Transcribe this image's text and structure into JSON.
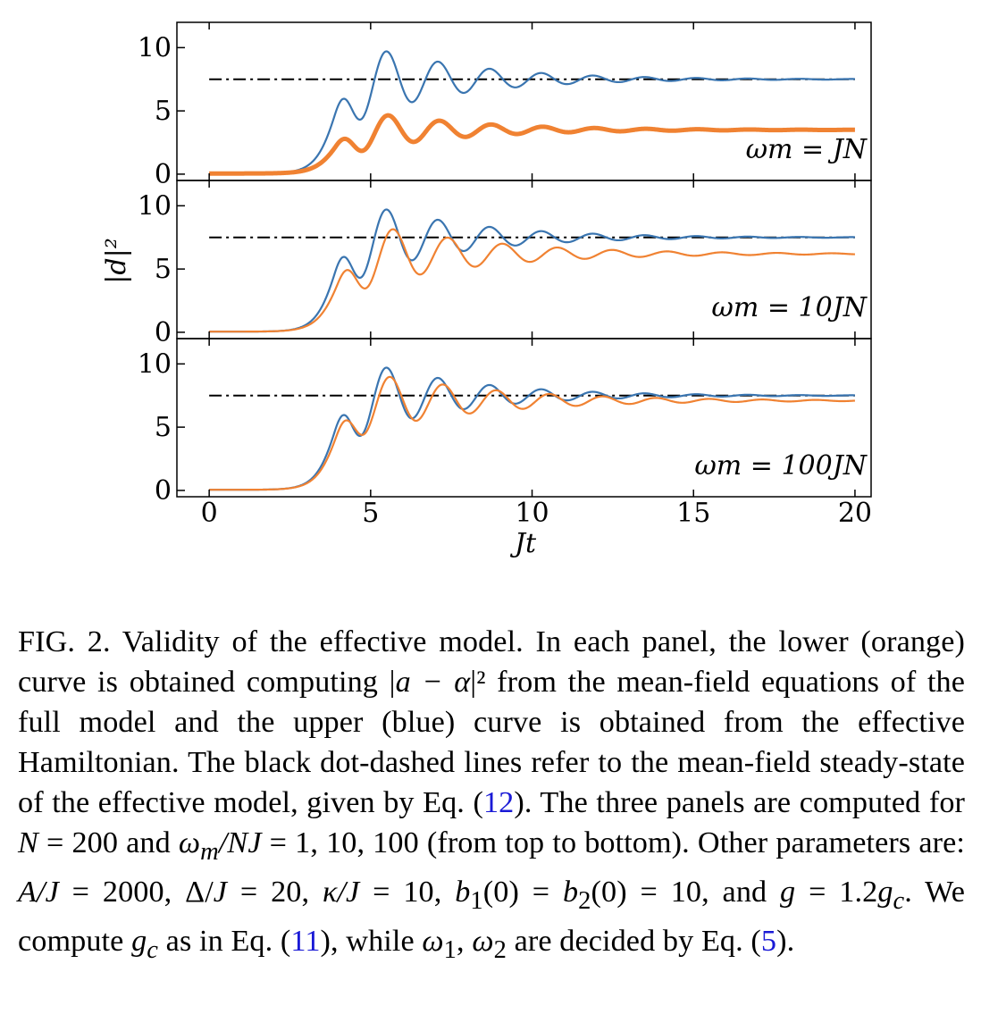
{
  "chart_data": {
    "type": "line",
    "shared_ylabel": "|d|²",
    "xlabel": "Jt",
    "xlim": [
      -1,
      20.5
    ],
    "xticks": [
      "0",
      "5",
      "10",
      "15",
      "20"
    ],
    "panels": [
      {
        "label": "ω_m = JN",
        "ylim": [
          -0.5,
          12
        ],
        "yticks": [
          "0",
          "5",
          "10"
        ],
        "series": [
          {
            "name": "effective Hamiltonian (upper, blue)",
            "color": "#3a75b0",
            "baseline": 0.05,
            "onset": 3.9,
            "rise_width": 0.35,
            "steady": 7.5,
            "amplitude": 3.9,
            "period": 1.6,
            "decay": 3.1
          },
          {
            "name": "full mean-field model (lower, orange)",
            "color": "#f08232",
            "baseline": 0.05,
            "onset": 3.95,
            "rise_width": 0.38,
            "steady": 3.5,
            "amplitude": 2.1,
            "period": 1.6,
            "decay": 3.0
          }
        ],
        "steady_state_line": 7.5
      },
      {
        "label": "ω_m = 10JN",
        "ylim": [
          -0.5,
          12
        ],
        "yticks": [
          "0",
          "5",
          "10"
        ],
        "series": [
          {
            "name": "effective Hamiltonian (upper, blue)",
            "color": "#3a75b0",
            "baseline": 0.05,
            "onset": 3.9,
            "rise_width": 0.35,
            "steady": 7.5,
            "amplitude": 3.9,
            "period": 1.6,
            "decay": 3.1
          },
          {
            "name": "full mean-field model (lower, orange)",
            "color": "#f08232",
            "baseline": 0.05,
            "onset": 4.0,
            "rise_width": 0.38,
            "steady": 6.2,
            "amplitude": 3.3,
            "period": 1.7,
            "decay": 3.6
          }
        ],
        "steady_state_line": 7.5
      },
      {
        "label": "ω_m = 100JN",
        "ylim": [
          -0.5,
          12
        ],
        "yticks": [
          "0",
          "5",
          "10"
        ],
        "series": [
          {
            "name": "effective Hamiltonian (upper, blue)",
            "color": "#3a75b0",
            "baseline": 0.05,
            "onset": 3.9,
            "rise_width": 0.35,
            "steady": 7.5,
            "amplitude": 3.9,
            "period": 1.6,
            "decay": 3.1
          },
          {
            "name": "full mean-field model (lower, orange)",
            "color": "#f08232",
            "baseline": 0.05,
            "onset": 3.95,
            "rise_width": 0.36,
            "steady": 7.1,
            "amplitude": 3.1,
            "period": 1.65,
            "decay": 3.7
          }
        ],
        "steady_state_line": 7.5
      }
    ]
  },
  "caption_parts": {
    "p01": "FIG. 2.  Validity of the effective model.  In each panel, the lower (orange) curve is obtained computing |",
    "p02": "a − α",
    "p03": "|² from the mean-field equations of the full model and the upper (blue) curve is obtained from the effective Hamiltonian.  The black dot-dashed lines refer to the mean-field steady-state of the effective model, given by Eq. (",
    "p04": "12",
    "p05": "). The three panels are computed for ",
    "p06": "N",
    "p07": " = 200 and ",
    "p08": "ω",
    "p09": "m",
    "p10": "/NJ",
    "p11": " = 1, 10, 100 (from top to bottom).  Other parameters are:  ",
    "p12": "A/J",
    "p13": " = 2000, Δ/",
    "p14": "J",
    "p15": " = 20, ",
    "p16": "κ/J",
    "p17": " = 10, ",
    "p18": "b",
    "p19": "1",
    "p20": "(0) = ",
    "p21": "b",
    "p22": "2",
    "p23": "(0) = 10, and ",
    "p24": "g",
    "p25": " = 1.2",
    "p26": "g",
    "p27": "c",
    "p28": ". We compute ",
    "p29": "g",
    "p30": "c",
    "p31": " as in Eq. (",
    "p32": "11",
    "p33": "), while ",
    "p34": "ω",
    "p35": "1",
    "p36": ", ",
    "p37": "ω",
    "p38": "2",
    "p39": " are decided by Eq. (",
    "p40": "5",
    "p41": ")."
  }
}
